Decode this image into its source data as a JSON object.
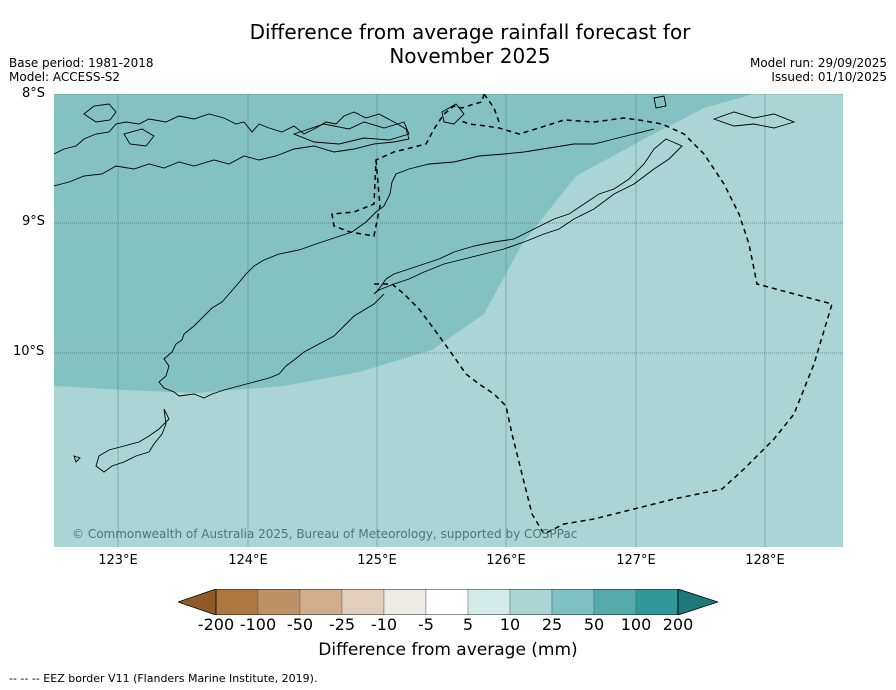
{
  "title_line1": "Difference from average rainfall forecast for",
  "title_line2": "November 2025",
  "base_period": "Base period: 1981-2018",
  "model": "Model: ACCESS-S2",
  "model_run": "Model run: 29/09/2025",
  "issued": "Issued: 01/10/2025",
  "copyright": "© Commonwealth of Australia 2025, Bureau of Meteorology, supported by COSPPac",
  "lat_labels": [
    "8°S",
    "9°S",
    "10°S"
  ],
  "lon_labels": [
    "123°E",
    "124°E",
    "125°E",
    "126°E",
    "127°E",
    "128°E"
  ],
  "colorbar": {
    "ticks": [
      "-200",
      "-100",
      "-50",
      "-25",
      "-10",
      "-5",
      "5",
      "10",
      "25",
      "50",
      "100",
      "200"
    ],
    "colors": [
      "#8f5a28",
      "#ad773f",
      "#be9066",
      "#d1ad8b",
      "#e2cebc",
      "#eeebe7",
      "#ffffff",
      "#d5ebea",
      "#aad5d5",
      "#7fc0c0",
      "#56aaaa",
      "#2f9898",
      "#1d7a78"
    ],
    "label": "Difference from average (mm)"
  },
  "colors": {
    "band_10_25": "#aad5d5",
    "band_25_50": "#84c1c1",
    "grid": "#5e8f8f"
  },
  "footer": "--  --  -- EEZ border V11 (Flanders Marine Institute, 2019)."
}
